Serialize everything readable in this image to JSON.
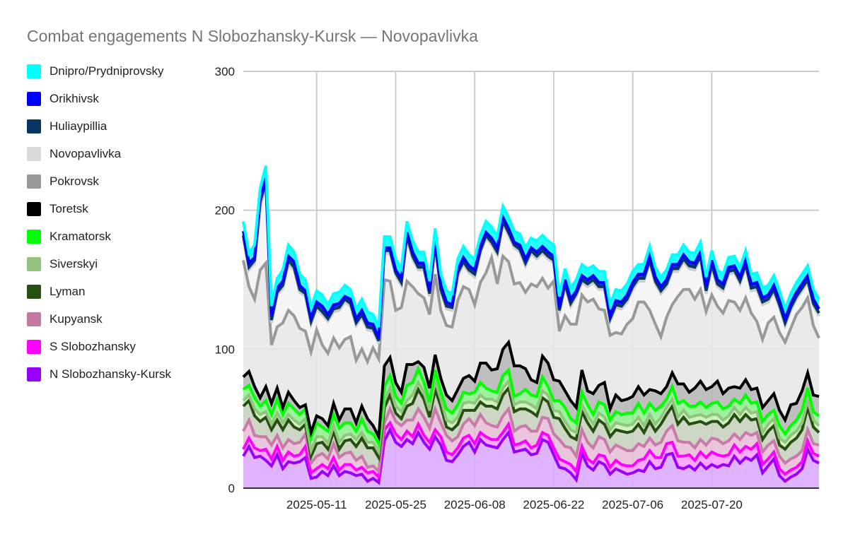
{
  "chart_data": {
    "type": "area",
    "stacked": true,
    "title": "Combat engagements N Slobozhansky-Kursk — Novopavlivka",
    "xlabel": "",
    "ylabel": "",
    "ylim": [
      0,
      300
    ],
    "yticks": [
      0,
      100,
      200,
      300
    ],
    "xticks": [
      "2025-05-11",
      "2025-05-25",
      "2025-06-08",
      "2025-06-22",
      "2025-07-06",
      "2025-07-20"
    ],
    "x_start": "2025-04-28",
    "grid": true,
    "legend_position": "left",
    "series": [
      {
        "name": "N Slobozhansky-Kursk",
        "color": "#9900ff",
        "fill": "#d9a6ff",
        "values": [
          23,
          30,
          22,
          23,
          20,
          16,
          24,
          14,
          19,
          18,
          19,
          22,
          7,
          8,
          12,
          9,
          16,
          9,
          12,
          11,
          9,
          10,
          5,
          7,
          4,
          34,
          42,
          33,
          30,
          35,
          32,
          40,
          33,
          28,
          37,
          31,
          20,
          19,
          24,
          30,
          33,
          26,
          35,
          31,
          30,
          29,
          35,
          40,
          26,
          27,
          28,
          24,
          25,
          35,
          33,
          24,
          15,
          14,
          11,
          6,
          25,
          16,
          13,
          19,
          17,
          10,
          14,
          12,
          10,
          11,
          13,
          12,
          19,
          14,
          15,
          24,
          25,
          15,
          14,
          16,
          13,
          18,
          14,
          17,
          15,
          17,
          16,
          23,
          18,
          22,
          20,
          24,
          11,
          16,
          21,
          9,
          5,
          8,
          10,
          14,
          28,
          20,
          18
        ]
      },
      {
        "name": "S Slobozhansky",
        "color": "#ff00ff",
        "fill": "#ff99ff",
        "values": [
          5,
          6,
          7,
          4,
          8,
          5,
          6,
          6,
          7,
          5,
          5,
          8,
          4,
          6,
          5,
          5,
          6,
          4,
          5,
          6,
          4,
          5,
          6,
          5,
          4,
          8,
          5,
          6,
          5,
          6,
          5,
          6,
          5,
          5,
          5,
          6,
          6,
          5,
          5,
          6,
          5,
          6,
          5,
          6,
          5,
          6,
          5,
          6,
          5,
          5,
          6,
          5,
          6,
          5,
          5,
          5,
          6,
          5,
          6,
          6,
          5,
          5,
          5,
          5,
          6,
          5,
          6,
          5,
          6,
          5,
          7,
          9,
          8,
          8,
          7,
          8,
          8,
          8,
          9,
          8,
          7,
          8,
          8,
          9,
          9,
          6,
          8,
          8,
          8,
          8,
          8,
          8,
          6,
          5,
          5,
          5,
          5,
          5,
          5,
          5,
          6,
          5,
          5
        ]
      },
      {
        "name": "Kupyansk",
        "color": "#c87aaa",
        "fill": "#e6bcd6",
        "values": [
          13,
          13,
          9,
          10,
          9,
          10,
          8,
          9,
          9,
          9,
          9,
          9,
          7,
          9,
          8,
          7,
          10,
          9,
          8,
          9,
          7,
          8,
          4,
          4,
          4,
          5,
          10,
          9,
          10,
          8,
          12,
          11,
          13,
          10,
          15,
          10,
          12,
          10,
          8,
          10,
          12,
          13,
          13,
          10,
          10,
          9,
          12,
          11,
          10,
          12,
          11,
          12,
          10,
          11,
          12,
          10,
          14,
          11,
          12,
          11,
          12,
          12,
          11,
          13,
          12,
          11,
          11,
          12,
          11,
          11,
          12,
          9,
          9,
          9,
          11,
          9,
          12,
          11,
          10,
          9,
          9,
          9,
          9,
          10,
          11,
          9,
          10,
          8,
          9,
          10,
          10,
          8,
          9,
          10,
          8,
          9,
          8,
          8,
          8,
          8,
          8,
          7,
          8
        ]
      },
      {
        "name": "Lyman",
        "color": "#274e13",
        "fill": "#c5cfbc",
        "values": [
          18,
          14,
          14,
          11,
          14,
          11,
          11,
          13,
          14,
          12,
          9,
          7,
          5,
          9,
          8,
          7,
          9,
          6,
          9,
          9,
          10,
          13,
          14,
          13,
          10,
          11,
          10,
          6,
          5,
          10,
          12,
          14,
          13,
          8,
          14,
          12,
          6,
          8,
          9,
          10,
          6,
          11,
          9,
          12,
          14,
          13,
          15,
          15,
          14,
          13,
          12,
          14,
          11,
          14,
          12,
          12,
          15,
          13,
          8,
          12,
          13,
          14,
          12,
          12,
          11,
          11,
          11,
          12,
          13,
          14,
          14,
          10,
          12,
          10,
          13,
          12,
          14,
          12,
          18,
          13,
          18,
          13,
          15,
          12,
          13,
          12,
          13,
          14,
          13,
          13,
          11,
          10,
          9,
          10,
          11,
          8,
          10,
          12,
          13,
          15,
          16,
          12,
          9
        ]
      },
      {
        "name": "Siverskyi",
        "color": "#93c47d",
        "fill": "#c8f0b4",
        "values": [
          4,
          4,
          5,
          5,
          4,
          4,
          5,
          5,
          4,
          5,
          4,
          4,
          4,
          5,
          4,
          4,
          4,
          5,
          4,
          4,
          5,
          4,
          4,
          4,
          4,
          5,
          5,
          5,
          5,
          4,
          6,
          5,
          5,
          5,
          6,
          5,
          5,
          5,
          5,
          5,
          6,
          5,
          5,
          5,
          5,
          5,
          5,
          5,
          5,
          5,
          5,
          5,
          5,
          5,
          5,
          5,
          5,
          5,
          5,
          5,
          5,
          5,
          5,
          5,
          5,
          5,
          5,
          5,
          5,
          5,
          5,
          5,
          5,
          5,
          5,
          5,
          5,
          5,
          5,
          5,
          5,
          5,
          5,
          5,
          5,
          5,
          5,
          5,
          5,
          5,
          5,
          5,
          5,
          5,
          5,
          5,
          5,
          5,
          5,
          5,
          5,
          5,
          5
        ]
      },
      {
        "name": "Kramatorsk",
        "color": "#00ff00",
        "fill": "#8cf08c",
        "values": [
          8,
          7,
          8,
          6,
          8,
          7,
          10,
          6,
          8,
          8,
          7,
          7,
          9,
          10,
          7,
          9,
          8,
          10,
          9,
          8,
          6,
          10,
          8,
          6,
          6,
          10,
          9,
          7,
          6,
          11,
          9,
          10,
          7,
          6,
          8,
          5,
          8,
          7,
          9,
          8,
          6,
          8,
          9,
          8,
          6,
          7,
          9,
          8,
          6,
          6,
          9,
          7,
          9,
          10,
          6,
          7,
          8,
          10,
          8,
          7,
          9,
          8,
          7,
          8,
          9,
          7,
          8,
          7,
          9,
          8,
          10,
          9,
          8,
          10,
          8,
          6,
          9,
          10,
          7,
          8,
          7,
          9,
          7,
          8,
          9,
          8,
          7,
          6,
          8,
          9,
          7,
          7,
          8,
          7,
          6,
          9,
          6,
          7,
          8,
          9,
          9,
          6,
          7
        ]
      },
      {
        "name": "Toretsk",
        "color": "#000000",
        "fill": "#b4b4b4",
        "values": [
          9,
          10,
          8,
          6,
          10,
          8,
          8,
          5,
          8,
          6,
          5,
          3,
          4,
          5,
          6,
          4,
          8,
          6,
          10,
          10,
          6,
          9,
          9,
          6,
          5,
          15,
          13,
          10,
          8,
          15,
          13,
          5,
          11,
          10,
          11,
          10,
          10,
          9,
          11,
          10,
          13,
          8,
          14,
          18,
          15,
          17,
          19,
          20,
          22,
          20,
          15,
          11,
          10,
          15,
          17,
          15,
          14,
          12,
          13,
          11,
          16,
          10,
          15,
          12,
          16,
          8,
          12,
          10,
          10,
          12,
          12,
          13,
          10,
          14,
          9,
          9,
          10,
          14,
          12,
          10,
          13,
          15,
          13,
          12,
          15,
          11,
          13,
          9,
          11,
          11,
          10,
          10,
          10,
          10,
          12,
          11,
          10,
          15,
          12,
          14,
          11,
          12,
          14
        ]
      },
      {
        "name": "Pokrovsk",
        "color": "#999999",
        "fill": "#e6e6e6",
        "values": [
          84,
          61,
          63,
          92,
          89,
          42,
          44,
          61,
          59,
          61,
          57,
          53,
          58,
          62,
          53,
          52,
          47,
          52,
          50,
          52,
          45,
          41,
          41,
          56,
          56,
          62,
          55,
          52,
          61,
          60,
          56,
          49,
          50,
          53,
          58,
          49,
          50,
          53,
          64,
          66,
          62,
          55,
          58,
          65,
          81,
          61,
          67,
          58,
          59,
          60,
          55,
          69,
          69,
          56,
          54,
          71,
          36,
          54,
          55,
          60,
          54,
          64,
          68,
          55,
          52,
          53,
          45,
          48,
          54,
          56,
          61,
          67,
          57,
          48,
          41,
          50,
          49,
          63,
          68,
          74,
          64,
          66,
          56,
          66,
          54,
          58,
          63,
          61,
          56,
          59,
          55,
          48,
          49,
          56,
          55,
          56,
          56,
          55,
          64,
          60,
          54,
          50,
          42
        ]
      },
      {
        "name": "Novopavlivka",
        "color": "#cccccc",
        "fill": "#f3f3f3",
        "values": [
          16,
          12,
          26,
          46,
          56,
          16,
          23,
          25,
          33,
          33,
          26,
          25,
          20,
          15,
          22,
          23,
          19,
          27,
          27,
          22,
          25,
          23,
          23,
          12,
          11,
          19,
          20,
          25,
          16,
          31,
          20,
          17,
          20,
          13,
          20,
          13,
          12,
          12,
          18,
          16,
          12,
          20,
          21,
          25,
          9,
          21,
          23,
          19,
          26,
          22,
          19,
          22,
          20,
          18,
          21,
          13,
          13,
          21,
          13,
          20,
          9,
          11,
          12,
          14,
          15,
          10,
          18,
          18,
          16,
          21,
          15,
          15,
          34,
          29,
          31,
          22,
          24,
          18,
          20,
          15,
          21,
          22,
          13,
          20,
          14,
          16,
          19,
          21,
          19,
          22,
          16,
          23,
          25,
          15,
          18,
          18,
          12,
          13,
          11,
          12,
          11,
          14,
          16
        ]
      },
      {
        "name": "Huliaypillia",
        "color": "#073763",
        "fill": "#073763",
        "values": [
          2,
          2,
          2,
          3,
          3,
          2,
          2,
          2,
          3,
          2,
          2,
          2,
          2,
          2,
          2,
          2,
          2,
          2,
          2,
          2,
          2,
          2,
          2,
          2,
          2,
          2,
          2,
          2,
          2,
          2,
          2,
          2,
          2,
          2,
          2,
          2,
          2,
          2,
          2,
          2,
          2,
          2,
          2,
          2,
          2,
          2,
          2,
          2,
          2,
          2,
          2,
          2,
          2,
          2,
          2,
          2,
          2,
          2,
          2,
          2,
          2,
          2,
          2,
          2,
          2,
          2,
          2,
          2,
          2,
          2,
          2,
          2,
          2,
          2,
          2,
          2,
          2,
          2,
          2,
          2,
          2,
          2,
          2,
          2,
          2,
          2,
          2,
          2,
          2,
          2,
          2,
          2,
          2,
          2,
          2,
          2,
          2,
          2,
          2,
          2,
          2,
          2,
          2
        ]
      },
      {
        "name": "Orikhivsk",
        "color": "#0000ff",
        "fill": "#0000ff",
        "values": [
          3,
          3,
          2,
          2,
          2,
          3,
          3,
          3,
          3,
          4,
          3,
          2,
          3,
          3,
          4,
          3,
          3,
          3,
          2,
          3,
          3,
          3,
          3,
          3,
          2,
          2,
          2,
          2,
          3,
          2,
          3,
          3,
          3,
          2,
          3,
          3,
          3,
          2,
          2,
          3,
          3,
          3,
          3,
          2,
          3,
          3,
          3,
          3,
          2,
          3,
          3,
          2,
          3,
          3,
          3,
          3,
          2,
          3,
          3,
          2,
          3,
          3,
          3,
          3,
          3,
          2,
          3,
          3,
          3,
          3,
          3,
          3,
          3,
          3,
          3,
          3,
          3,
          3,
          3,
          3,
          3,
          3,
          3,
          3,
          3,
          3,
          3,
          3,
          3,
          3,
          3,
          3,
          3,
          3,
          3,
          3,
          3,
          3,
          3,
          3,
          3,
          3,
          3
        ]
      },
      {
        "name": "Dnipro/Prydniprovsky",
        "color": "#00ffff",
        "fill": "#00ffff",
        "values": [
          7,
          7,
          9,
          8,
          9,
          7,
          7,
          8,
          8,
          7,
          8,
          8,
          7,
          8,
          8,
          7,
          8,
          8,
          8,
          7,
          7,
          8,
          8,
          7,
          8,
          8,
          8,
          8,
          7,
          8,
          8,
          8,
          8,
          7,
          8,
          8,
          8,
          8,
          8,
          8,
          8,
          8,
          8,
          8,
          8,
          8,
          8,
          8,
          8,
          8,
          8,
          7,
          8,
          8,
          8,
          8,
          8,
          8,
          8,
          8,
          8,
          8,
          7,
          8,
          8,
          8,
          8,
          8,
          8,
          8,
          7,
          7,
          7,
          7,
          7,
          7,
          7,
          7,
          7,
          7,
          7,
          7,
          7,
          7,
          7,
          7,
          7,
          7,
          7,
          7,
          7,
          7,
          7,
          7,
          7,
          7,
          7,
          7,
          7,
          7,
          7,
          7,
          7
        ]
      }
    ]
  },
  "legend": [
    {
      "label": "Dnipro/Prydniprovsky",
      "color": "#00ffff"
    },
    {
      "label": "Orikhivsk",
      "color": "#0000ff"
    },
    {
      "label": "Huliaypillia",
      "color": "#073763"
    },
    {
      "label": "Novopavlivka",
      "color": "#d9d9d9"
    },
    {
      "label": "Pokrovsk",
      "color": "#999999"
    },
    {
      "label": "Toretsk",
      "color": "#000000"
    },
    {
      "label": "Kramatorsk",
      "color": "#00ff00"
    },
    {
      "label": "Siverskyi",
      "color": "#93c47d"
    },
    {
      "label": "Lyman",
      "color": "#274e13"
    },
    {
      "label": "Kupyansk",
      "color": "#c27ba0"
    },
    {
      "label": "S Slobozhansky",
      "color": "#ff00ff"
    },
    {
      "label": "N Slobozhansky-Kursk",
      "color": "#9900ff"
    }
  ]
}
